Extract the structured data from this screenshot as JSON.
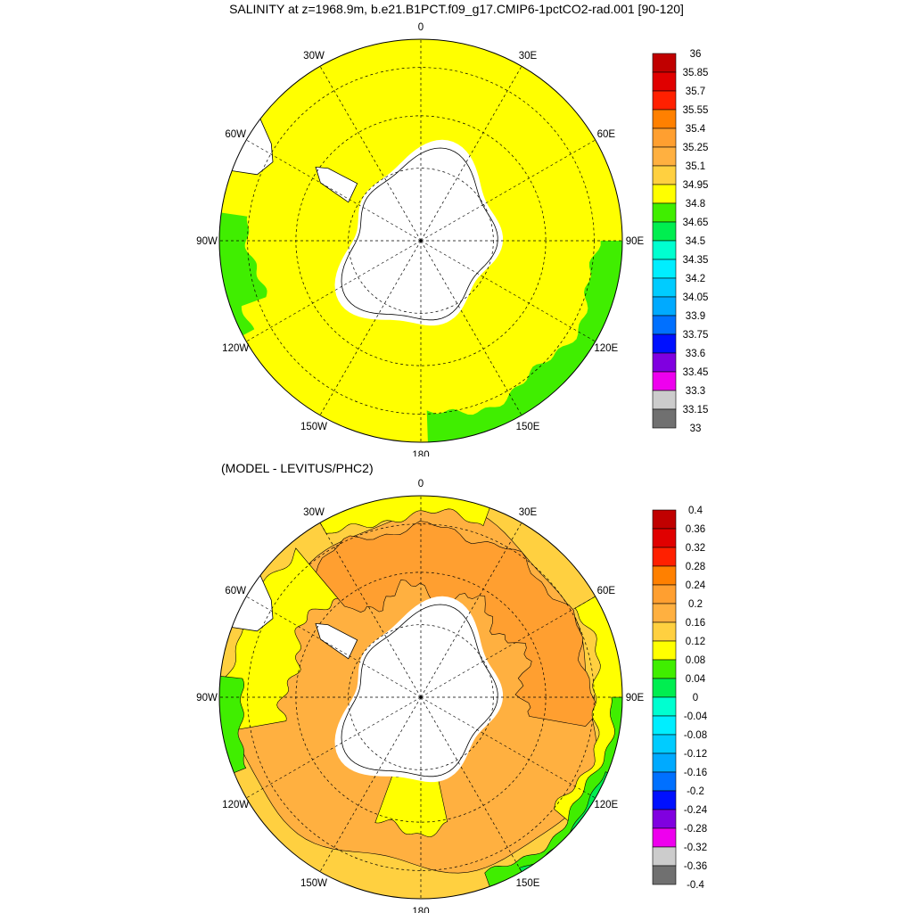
{
  "chart_data": [
    {
      "type": "heatmap",
      "projection": "south polar stereographic",
      "title": "SALINITY at z=1968.9m, b.e21.B1PCT.f09_g17.CMIP6-1pctCO2-rad.001 [90-120]",
      "longitude_labels": [
        "0",
        "30E",
        "60E",
        "90E",
        "120E",
        "150E",
        "180",
        "150W",
        "120W",
        "90W",
        "60W",
        "30W"
      ],
      "colorbar": {
        "levels": [
          "36",
          "35.85",
          "35.7",
          "35.55",
          "35.4",
          "35.25",
          "35.1",
          "34.95",
          "34.8",
          "34.65",
          "34.5",
          "34.35",
          "34.2",
          "34.05",
          "33.9",
          "33.75",
          "33.6",
          "33.45",
          "33.3",
          "33.15",
          "33"
        ],
        "colors": [
          "#c00000",
          "#e00000",
          "#ff2000",
          "#ff8000",
          "#ff9f30",
          "#ffb040",
          "#ffd040",
          "#ffff00",
          "#40ee00",
          "#00ee50",
          "#00ffd0",
          "#00eeff",
          "#00ccff",
          "#00aaff",
          "#0070ff",
          "#0010ff",
          "#8000e0",
          "#ee00ee",
          "#cccccc",
          "#707070"
        ]
      },
      "field": {
        "dominant_range": [
          34.8,
          34.95
        ],
        "lower_band_range": [
          34.65,
          34.8
        ],
        "lower_band_longitudes": "90W-110W and 90E-180"
      }
    },
    {
      "type": "heatmap",
      "projection": "south polar stereographic",
      "title": "(MODEL - LEVITUS/PHC2)",
      "longitude_labels": [
        "0",
        "30E",
        "60E",
        "90E",
        "120E",
        "150E",
        "180",
        "150W",
        "120W",
        "90W",
        "60W",
        "30W"
      ],
      "colorbar": {
        "levels": [
          "0.4",
          "0.36",
          "0.32",
          "0.28",
          "0.24",
          "0.2",
          "0.16",
          "0.12",
          "0.08",
          "0.04",
          "0",
          "-0.04",
          "-0.08",
          "-0.12",
          "-0.16",
          "-0.2",
          "-0.24",
          "-0.28",
          "-0.32",
          "-0.36",
          "-0.4"
        ],
        "colors": [
          "#c00000",
          "#e00000",
          "#ff2000",
          "#ff8000",
          "#ff9f30",
          "#ffb040",
          "#ffd040",
          "#ffff00",
          "#40ee00",
          "#00ee50",
          "#00ffd0",
          "#00eeff",
          "#00ccff",
          "#00aaff",
          "#0070ff",
          "#0010ff",
          "#8000e0",
          "#ee00ee",
          "#cccccc",
          "#707070"
        ]
      },
      "field": {
        "inner_ring_range": [
          0.16,
          0.24
        ],
        "outer_ring_range": [
          0.12,
          0.16
        ],
        "northern_rim_range": [
          0.04,
          0.12
        ]
      }
    }
  ]
}
